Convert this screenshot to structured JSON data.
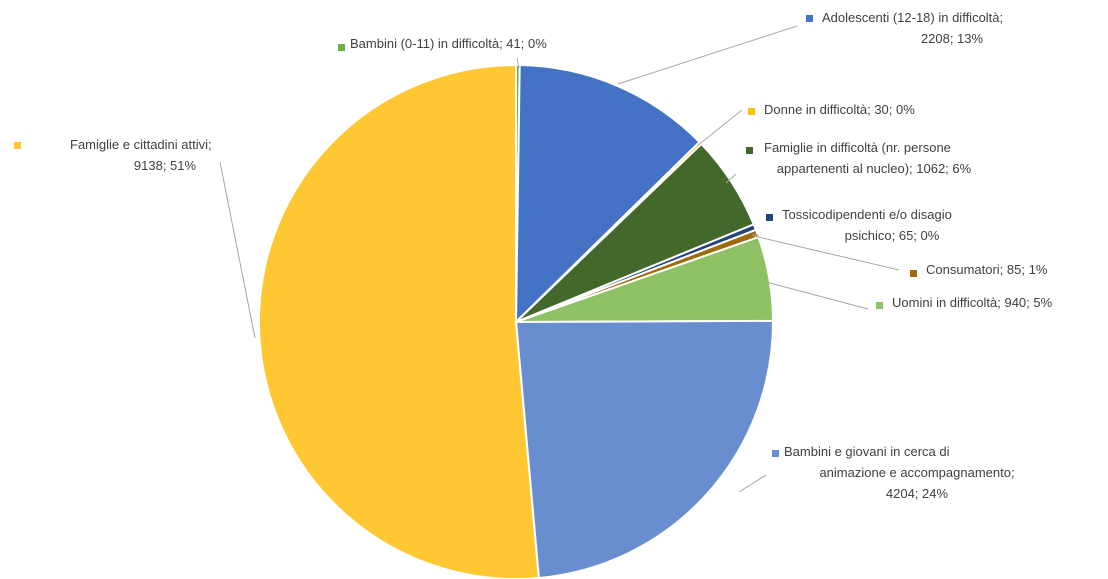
{
  "chart_data": {
    "type": "pie",
    "title": "",
    "slices": [
      {
        "label": "Bambini (0-11) in difficoltà",
        "value": 41,
        "percent": "0%",
        "color": "#70ad47",
        "label_text": [
          "Bambini (0-11) in difficoltà; 41; 0%"
        ]
      },
      {
        "label": "Adolescenti (12-18) in difficoltà",
        "value": 2208,
        "percent": "13%",
        "color": "#4472c4",
        "label_text": [
          "Adolescenti (12-18) in difficoltà;",
          "2208; 13%"
        ]
      },
      {
        "label": "Donne in difficoltà",
        "value": 30,
        "percent": "0%",
        "color": "#ffc000",
        "label_text": [
          "Donne in difficoltà; 30; 0%"
        ]
      },
      {
        "label": "Famiglie in difficoltà (nr. persone appartenenti al nucleo)",
        "value": 1062,
        "percent": "6%",
        "color": "#43682b",
        "label_text": [
          "Famiglie in difficoltà (nr. persone",
          "appartenenti al nucleo); 1062; 6%"
        ]
      },
      {
        "label": "Tossicodipendenti e/o disagio psichico",
        "value": 65,
        "percent": "0%",
        "color": "#264478",
        "label_text": [
          "Tossicodipendenti e/o disagio",
          "psichico; 65; 0%"
        ]
      },
      {
        "label": "Consumatori",
        "value": 85,
        "percent": "1%",
        "color": "#9e6b0b",
        "label_text": [
          "Consumatori; 85; 1%"
        ]
      },
      {
        "label": "Uomini in difficoltà",
        "value": 940,
        "percent": "5%",
        "color": "#8fc165",
        "label_text": [
          "Uomini in difficoltà; 940; 5%"
        ]
      },
      {
        "label": "Bambini e giovani in cerca di animazione e accompagnamento",
        "value": 4204,
        "percent": "24%",
        "color": "#698ed0",
        "label_text": [
          "Bambini e giovani in cerca di",
          "animazione e accompagnamento;",
          "4204; 24%"
        ]
      },
      {
        "label": "Famiglie e cittadini attivi",
        "value": 9138,
        "percent": "51%",
        "color": "#ffc832",
        "label_text": [
          "Famiglie e cittadini attivi;",
          "9138; 51%"
        ]
      }
    ]
  }
}
